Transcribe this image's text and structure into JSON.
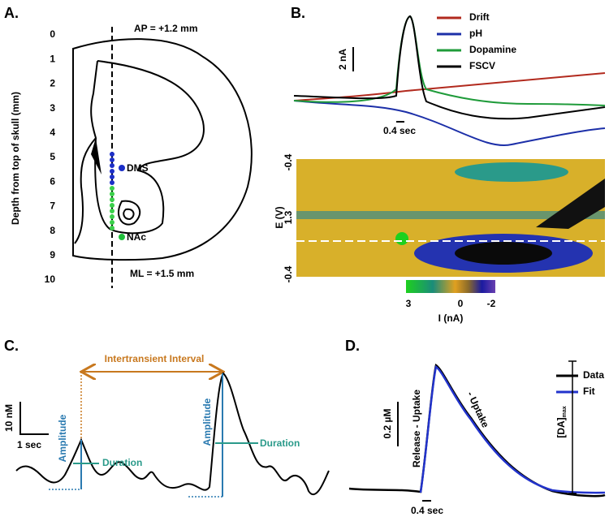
{
  "panel_a": {
    "label": "A.",
    "axis_label": "Depth from top of skull (mm)",
    "ticks": [
      0,
      1,
      2,
      3,
      4,
      5,
      6,
      7,
      8,
      9,
      10
    ],
    "ap": "AP = +1.2 mm",
    "ml": "ML = +1.5 mm",
    "dms": "DMS",
    "nac": "NAc"
  },
  "panel_b": {
    "label": "B.",
    "legend": [
      {
        "name": "Drift",
        "color": "#b22a1e"
      },
      {
        "name": "pH",
        "color": "#1c2fa8"
      },
      {
        "name": "Dopamine",
        "color": "#1f9b3a"
      },
      {
        "name": "FSCV",
        "color": "#000000"
      }
    ],
    "scale_y": "2 nA",
    "scale_x": "0.4 sec",
    "e_axis": "E (V)",
    "e_ticks": [
      "-0.4",
      "1.3",
      "-0.4"
    ],
    "colorbar_ticks": [
      "3",
      "0",
      "-2"
    ],
    "colorbar_label": "I (nA)"
  },
  "panel_c": {
    "label": "C.",
    "interval": "Intertransient Interval",
    "scale_y": "10 nM",
    "scale_x": "1 sec",
    "amplitude": "Amplitude",
    "duration": "Duration"
  },
  "panel_d": {
    "label": "D.",
    "legend": [
      {
        "name": "Data",
        "color": "#000000"
      },
      {
        "name": "Fit",
        "color": "#2233cc"
      }
    ],
    "scale_y": "0.2 µM",
    "scale_x": "0.4 sec",
    "release": "Release - Uptake",
    "uptake": "- Uptake",
    "da": "[DA]",
    "da_sub": "max"
  }
}
